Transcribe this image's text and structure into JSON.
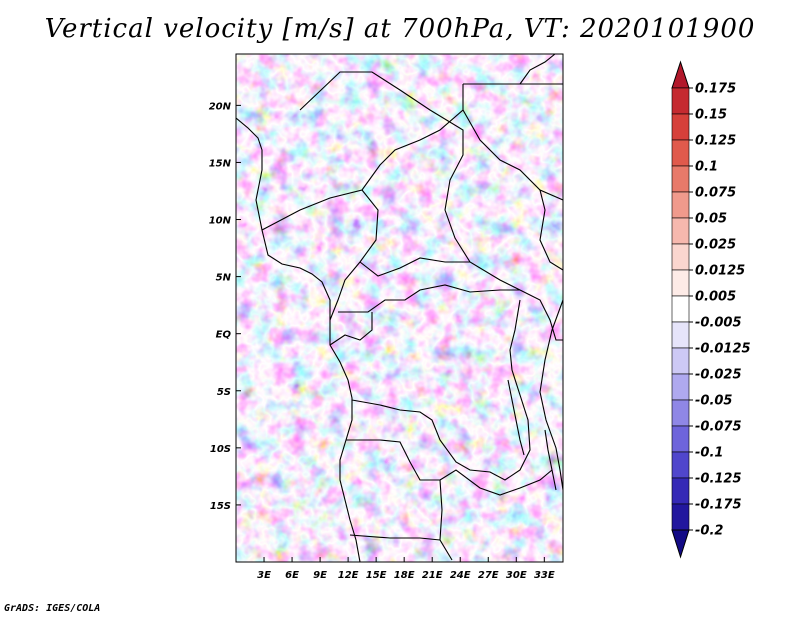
{
  "title": "Vertical velocity [m/s] at 700hPa, VT: 2020101900",
  "credit": "GrADS: IGES/COLA",
  "map": {
    "lon_range": [
      0,
      35
    ],
    "lat_range": [
      -20,
      24.5
    ],
    "lat_labels": [
      "20N",
      "15N",
      "10N",
      "5N",
      "EQ",
      "5S",
      "10S",
      "15S"
    ],
    "lat_values": [
      20,
      15,
      10,
      5,
      0,
      -5,
      -10,
      -15
    ],
    "lon_labels": [
      "3E",
      "6E",
      "9E",
      "12E",
      "15E",
      "18E",
      "21E",
      "24E",
      "27E",
      "30E",
      "33E"
    ],
    "lon_values": [
      3,
      6,
      9,
      12,
      15,
      18,
      21,
      24,
      27,
      30,
      33
    ]
  },
  "colorbar": {
    "labels": [
      "0.175",
      "0.15",
      "0.125",
      "0.1",
      "0.075",
      "0.05",
      "0.025",
      "0.0125",
      "0.005",
      "-0.005",
      "-0.0125",
      "-0.025",
      "-0.05",
      "-0.075",
      "-0.1",
      "-0.125",
      "-0.175",
      "-0.2"
    ],
    "colors": [
      "#b2182b",
      "#c52a30",
      "#d6403a",
      "#e05a4c",
      "#e87a6a",
      "#f09a8c",
      "#f6b8ae",
      "#fad6cf",
      "#fdebe7",
      "#ffffff",
      "#e6e4fa",
      "#cdc9f5",
      "#afa9ef",
      "#8f87e6",
      "#6e64db",
      "#5046cc",
      "#3529b6",
      "#22179e",
      "#130b86"
    ]
  }
}
